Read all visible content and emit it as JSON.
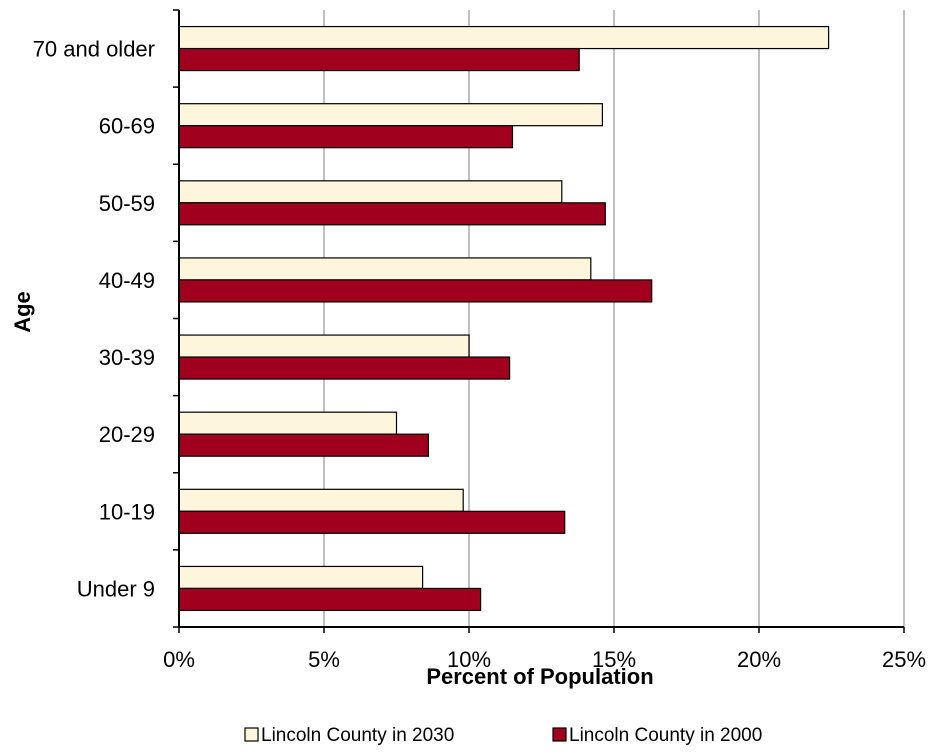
{
  "chart_data": {
    "type": "bar",
    "orientation": "horizontal",
    "categories": [
      "Under 9",
      "10-19",
      "20-29",
      "30-39",
      "40-49",
      "50-59",
      "60-69",
      "70 and older"
    ],
    "series": [
      {
        "name": "Lincoln County in 2030",
        "color": "#fdf6dc",
        "values": [
          8.4,
          9.8,
          7.5,
          10.0,
          14.2,
          13.2,
          14.6,
          22.4
        ]
      },
      {
        "name": "Lincoln County in 2000",
        "color": "#a0001e",
        "values": [
          10.4,
          13.3,
          8.6,
          11.4,
          16.3,
          14.7,
          11.5,
          13.8
        ]
      }
    ],
    "xlabel": "Percent of Population",
    "ylabel": "Age",
    "xlim": [
      0,
      25
    ],
    "xticks": [
      "0%",
      "5%",
      "10%",
      "15%",
      "20%",
      "25%"
    ],
    "grid": "vertical",
    "legend_position": "bottom"
  }
}
